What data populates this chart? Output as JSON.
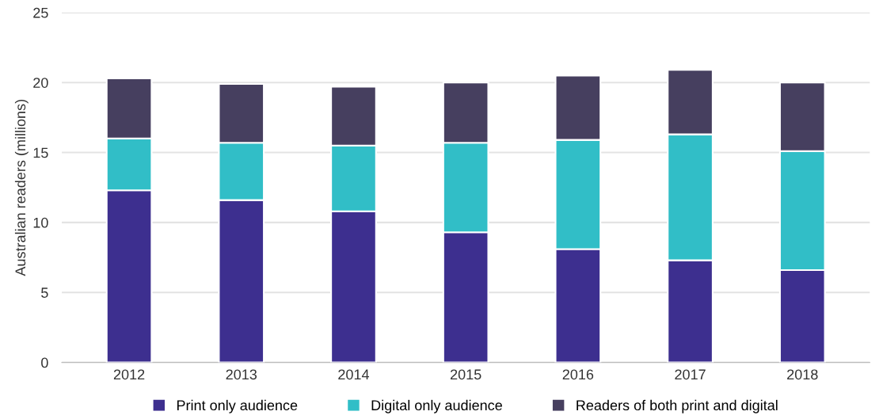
{
  "chart_data": {
    "type": "bar",
    "stacked": true,
    "ylabel": "Australian readers (millions)",
    "categories": [
      "2012",
      "2013",
      "2014",
      "2015",
      "2016",
      "2017",
      "2018"
    ],
    "series": [
      {
        "name": "Print only audience",
        "color": "#3d2f8f",
        "values": [
          12.3,
          11.6,
          10.8,
          9.3,
          8.1,
          7.3,
          6.6
        ]
      },
      {
        "name": "Digital only audience",
        "color": "#31bec7",
        "values": [
          3.7,
          4.1,
          4.7,
          6.4,
          7.8,
          9.0,
          8.5
        ]
      },
      {
        "name": "Readers of both print and digital",
        "color": "#463f5f",
        "values": [
          4.3,
          4.2,
          4.2,
          4.3,
          4.6,
          4.6,
          4.9
        ]
      }
    ],
    "ylim": [
      0,
      25
    ],
    "yticks": [
      0,
      5,
      10,
      15,
      20,
      25
    ],
    "grid": "y",
    "legend": "bottom"
  }
}
